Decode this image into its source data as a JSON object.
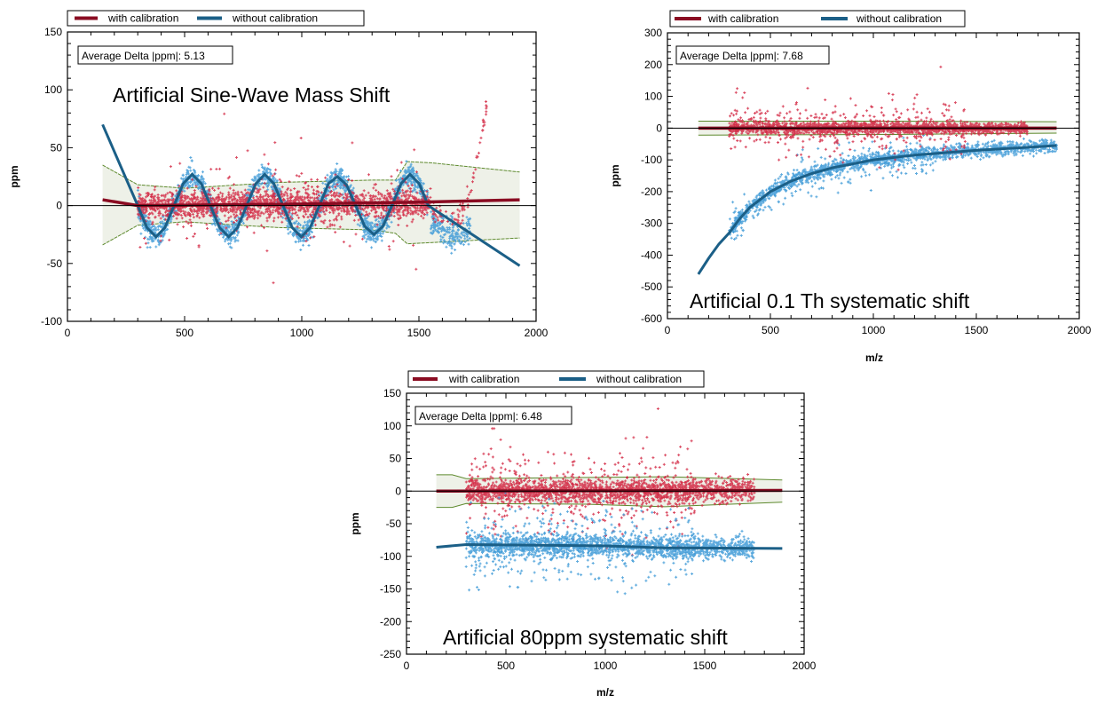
{
  "colors": {
    "with_points": "#d42a45",
    "with_line": "#8a0c22",
    "without_points": "#3f9bd8",
    "without_line": "#1b5f87",
    "band_fill": "#eef1e8",
    "band_edge": "#5e8a2e",
    "zero_line": "#000000"
  },
  "chart_data": [
    {
      "type": "scatter",
      "title": "Artificial Sine-Wave Mass Shift",
      "annotation": "Average Delta |ppm|: 5.13",
      "xlabel": "",
      "ylabel": "ppm",
      "xlim": [
        0,
        2000
      ],
      "ylim": [
        -100,
        150
      ],
      "xticks": [
        0,
        500,
        1000,
        1500,
        2000
      ],
      "yticks": [
        -100,
        -50,
        0,
        50,
        100,
        150
      ],
      "x_minor": 100,
      "y_minor": 10,
      "grid": false,
      "legend": {
        "position": "top",
        "entries": [
          "with calibration",
          "without calibration"
        ]
      },
      "trend": {
        "with calibration": [
          [
            150,
            5
          ],
          [
            300,
            0
          ],
          [
            900,
            1
          ],
          [
            1500,
            3
          ],
          [
            1930,
            5
          ]
        ],
        "without calibration": [
          [
            150,
            70
          ],
          [
            300,
            0
          ],
          [
            339,
            -19
          ],
          [
            378,
            -27
          ],
          [
            416,
            -19
          ],
          [
            455,
            0
          ],
          [
            494,
            19
          ],
          [
            532,
            27
          ],
          [
            571,
            19
          ],
          [
            610,
            0
          ],
          [
            649,
            -19
          ],
          [
            688,
            -27
          ],
          [
            726,
            -19
          ],
          [
            765,
            0
          ],
          [
            804,
            19
          ],
          [
            842,
            27
          ],
          [
            881,
            19
          ],
          [
            920,
            0
          ],
          [
            959,
            -19
          ],
          [
            998,
            -27
          ],
          [
            1036,
            -19
          ],
          [
            1075,
            0
          ],
          [
            1114,
            19
          ],
          [
            1152,
            25
          ],
          [
            1191,
            18
          ],
          [
            1230,
            0
          ],
          [
            1269,
            -18
          ],
          [
            1308,
            -25
          ],
          [
            1346,
            -18
          ],
          [
            1385,
            0
          ],
          [
            1424,
            19
          ],
          [
            1462,
            27
          ],
          [
            1501,
            19
          ],
          [
            1540,
            0
          ],
          [
            1930,
            -52
          ]
        ]
      },
      "band": {
        "upper": [
          [
            150,
            35
          ],
          [
            300,
            18
          ],
          [
            500,
            15
          ],
          [
            900,
            20
          ],
          [
            1300,
            22
          ],
          [
            1400,
            22
          ],
          [
            1450,
            38
          ],
          [
            1550,
            37
          ],
          [
            1930,
            29
          ]
        ],
        "lower": [
          [
            150,
            -34
          ],
          [
            300,
            -17
          ],
          [
            500,
            -14
          ],
          [
            900,
            -19
          ],
          [
            1300,
            -21
          ],
          [
            1400,
            -24
          ],
          [
            1450,
            -33
          ],
          [
            1550,
            -32
          ],
          [
            1930,
            -28
          ]
        ]
      },
      "scatter": [
        {
          "series": "without calibration",
          "center": [
            [
              300,
              0
            ],
            [
              339,
              -19
            ],
            [
              378,
              -27
            ],
            [
              416,
              -19
            ],
            [
              455,
              0
            ],
            [
              494,
              19
            ],
            [
              532,
              27
            ],
            [
              571,
              19
            ],
            [
              610,
              0
            ],
            [
              649,
              -19
            ],
            [
              688,
              -27
            ],
            [
              726,
              -19
            ],
            [
              765,
              0
            ],
            [
              804,
              19
            ],
            [
              842,
              27
            ],
            [
              881,
              19
            ],
            [
              920,
              0
            ],
            [
              959,
              -19
            ],
            [
              998,
              -27
            ],
            [
              1036,
              -19
            ],
            [
              1075,
              0
            ],
            [
              1114,
              19
            ],
            [
              1152,
              25
            ],
            [
              1191,
              18
            ],
            [
              1230,
              0
            ],
            [
              1269,
              -18
            ],
            [
              1308,
              -25
            ],
            [
              1346,
              -18
            ],
            [
              1385,
              0
            ],
            [
              1424,
              19
            ],
            [
              1462,
              27
            ],
            [
              1501,
              19
            ],
            [
              1540,
              0
            ]
          ],
          "spread": 5,
          "count": 1800
        },
        {
          "series": "without calibration",
          "center": [
            [
              1550,
              -15
            ],
            [
              1650,
              -28
            ],
            [
              1720,
              -20
            ]
          ],
          "spread": 7,
          "count": 200
        },
        {
          "series": "with calibration",
          "center": [
            [
              300,
              0
            ],
            [
              1550,
              2
            ]
          ],
          "spread": 6,
          "count": 1800
        },
        {
          "series": "with calibration",
          "center": [
            [
              300,
              0
            ],
            [
              1500,
              0
            ]
          ],
          "spread": 24,
          "count": 220
        },
        {
          "series": "with calibration",
          "center": [
            [
              1560,
              -5
            ],
            [
              1650,
              -15
            ],
            [
              1700,
              0
            ],
            [
              1740,
              30
            ],
            [
              1790,
              85
            ]
          ],
          "spread": 4,
          "count": 90
        }
      ]
    },
    {
      "type": "scatter",
      "title": "Artificial 0.1 Th systematic shift",
      "annotation": "Average Delta |ppm|: 7.68",
      "xlabel": "m/z",
      "ylabel": "ppm",
      "xlim": [
        0,
        2000
      ],
      "ylim": [
        -600,
        300
      ],
      "xticks": [
        0,
        500,
        1000,
        1500,
        2000
      ],
      "yticks": [
        -600,
        -500,
        -400,
        -300,
        -200,
        -100,
        0,
        100,
        200,
        300
      ],
      "x_minor": 100,
      "y_minor": 20,
      "grid": false,
      "legend": {
        "position": "top",
        "entries": [
          "with calibration",
          "without calibration"
        ]
      },
      "trend": {
        "with calibration": [
          [
            150,
            0
          ],
          [
            1890,
            0
          ]
        ],
        "without calibration": [
          [
            150,
            -460
          ],
          [
            200,
            -410
          ],
          [
            250,
            -365
          ],
          [
            300,
            -330
          ],
          [
            350,
            -286
          ],
          [
            400,
            -250
          ],
          [
            500,
            -200
          ],
          [
            600,
            -167
          ],
          [
            700,
            -143
          ],
          [
            800,
            -125
          ],
          [
            1000,
            -100
          ],
          [
            1200,
            -85
          ],
          [
            1500,
            -70
          ],
          [
            1890,
            -55
          ]
        ]
      },
      "band": {
        "upper": [
          [
            150,
            22
          ],
          [
            1100,
            22
          ],
          [
            1890,
            20
          ]
        ],
        "lower": [
          [
            150,
            -22
          ],
          [
            1100,
            -20
          ],
          [
            1890,
            -16
          ]
        ]
      },
      "scatter": [
        {
          "series": "without calibration",
          "center": [
            [
              300,
              -330
            ],
            [
              350,
              -286
            ],
            [
              400,
              -250
            ],
            [
              500,
              -200
            ],
            [
              600,
              -167
            ],
            [
              700,
              -143
            ],
            [
              800,
              -125
            ],
            [
              1000,
              -100
            ],
            [
              1200,
              -85
            ],
            [
              1500,
              -70
            ],
            [
              1890,
              -55
            ]
          ],
          "spread": 10,
          "count": 1600
        },
        {
          "series": "without calibration",
          "center": [
            [
              300,
              -330
            ],
            [
              400,
              -250
            ],
            [
              600,
              -167
            ],
            [
              800,
              -125
            ],
            [
              1000,
              -100
            ],
            [
              1300,
              -80
            ]
          ],
          "spread": 35,
          "count": 300
        },
        {
          "series": "with calibration",
          "center": [
            [
              300,
              0
            ],
            [
              1750,
              0
            ]
          ],
          "spread": 9,
          "count": 1600
        },
        {
          "series": "with calibration",
          "center": [
            [
              300,
              0
            ],
            [
              1450,
              0
            ]
          ],
          "spread": 45,
          "count": 380
        }
      ]
    },
    {
      "type": "scatter",
      "title": "Artificial 80ppm systematic shift",
      "annotation": "Average Delta |ppm|: 6.48",
      "xlabel": "m/z",
      "ylabel": "ppm",
      "xlim": [
        0,
        2000
      ],
      "ylim": [
        -250,
        150
      ],
      "xticks": [
        0,
        500,
        1000,
        1500,
        2000
      ],
      "yticks": [
        -250,
        -200,
        -150,
        -100,
        -50,
        0,
        50,
        100,
        150
      ],
      "x_minor": 100,
      "y_minor": 10,
      "grid": false,
      "legend": {
        "position": "top",
        "entries": [
          "with calibration",
          "without calibration"
        ]
      },
      "trend": {
        "with calibration": [
          [
            150,
            0
          ],
          [
            1890,
            1
          ]
        ],
        "without calibration": [
          [
            150,
            -86
          ],
          [
            300,
            -82
          ],
          [
            1000,
            -84
          ],
          [
            1300,
            -87
          ],
          [
            1890,
            -88
          ]
        ]
      },
      "band": {
        "upper": [
          [
            150,
            25
          ],
          [
            230,
            25
          ],
          [
            300,
            19
          ],
          [
            900,
            21
          ],
          [
            1300,
            22
          ],
          [
            1890,
            17
          ]
        ],
        "lower": [
          [
            150,
            -25
          ],
          [
            230,
            -25
          ],
          [
            300,
            -19
          ],
          [
            900,
            -20
          ],
          [
            1300,
            -24
          ],
          [
            1890,
            -17
          ]
        ]
      },
      "scatter": [
        {
          "series": "with calibration",
          "center": [
            [
              300,
              0
            ],
            [
              1750,
              1
            ]
          ],
          "spread": 9,
          "count": 1700
        },
        {
          "series": "with calibration",
          "center": [
            [
              300,
              0
            ],
            [
              1450,
              0
            ]
          ],
          "spread": 33,
          "count": 420
        },
        {
          "series": "without calibration",
          "center": [
            [
              300,
              -82
            ],
            [
              1000,
              -84
            ],
            [
              1300,
              -87
            ],
            [
              1750,
              -88
            ]
          ],
          "spread": 8,
          "count": 1700
        },
        {
          "series": "without calibration",
          "center": [
            [
              300,
              -82
            ],
            [
              1000,
              -84
            ],
            [
              1450,
              -87
            ]
          ],
          "spread": 30,
          "count": 420
        }
      ]
    }
  ]
}
